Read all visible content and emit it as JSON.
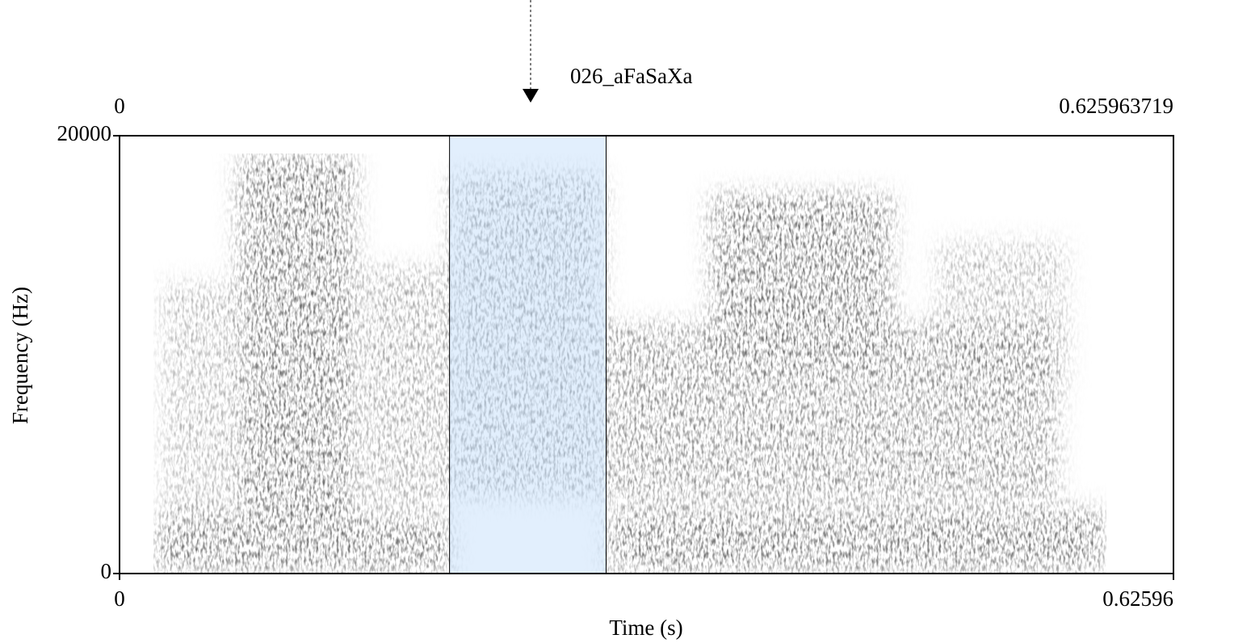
{
  "chart_data": {
    "type": "spectrogram",
    "title": "026_aFaSaXa",
    "x_label": "Time (s)",
    "y_label": "Frequency (Hz)",
    "xlim": [
      0,
      0.625963719
    ],
    "xticks": [
      0,
      0.62596
    ],
    "x2ticks": [
      0,
      0.625963719
    ],
    "ylim": [
      0,
      20000
    ],
    "yticks": [
      0,
      20000
    ],
    "selection": [
      0.196,
      0.289
    ],
    "selection_color": "#cfe4fb"
  }
}
